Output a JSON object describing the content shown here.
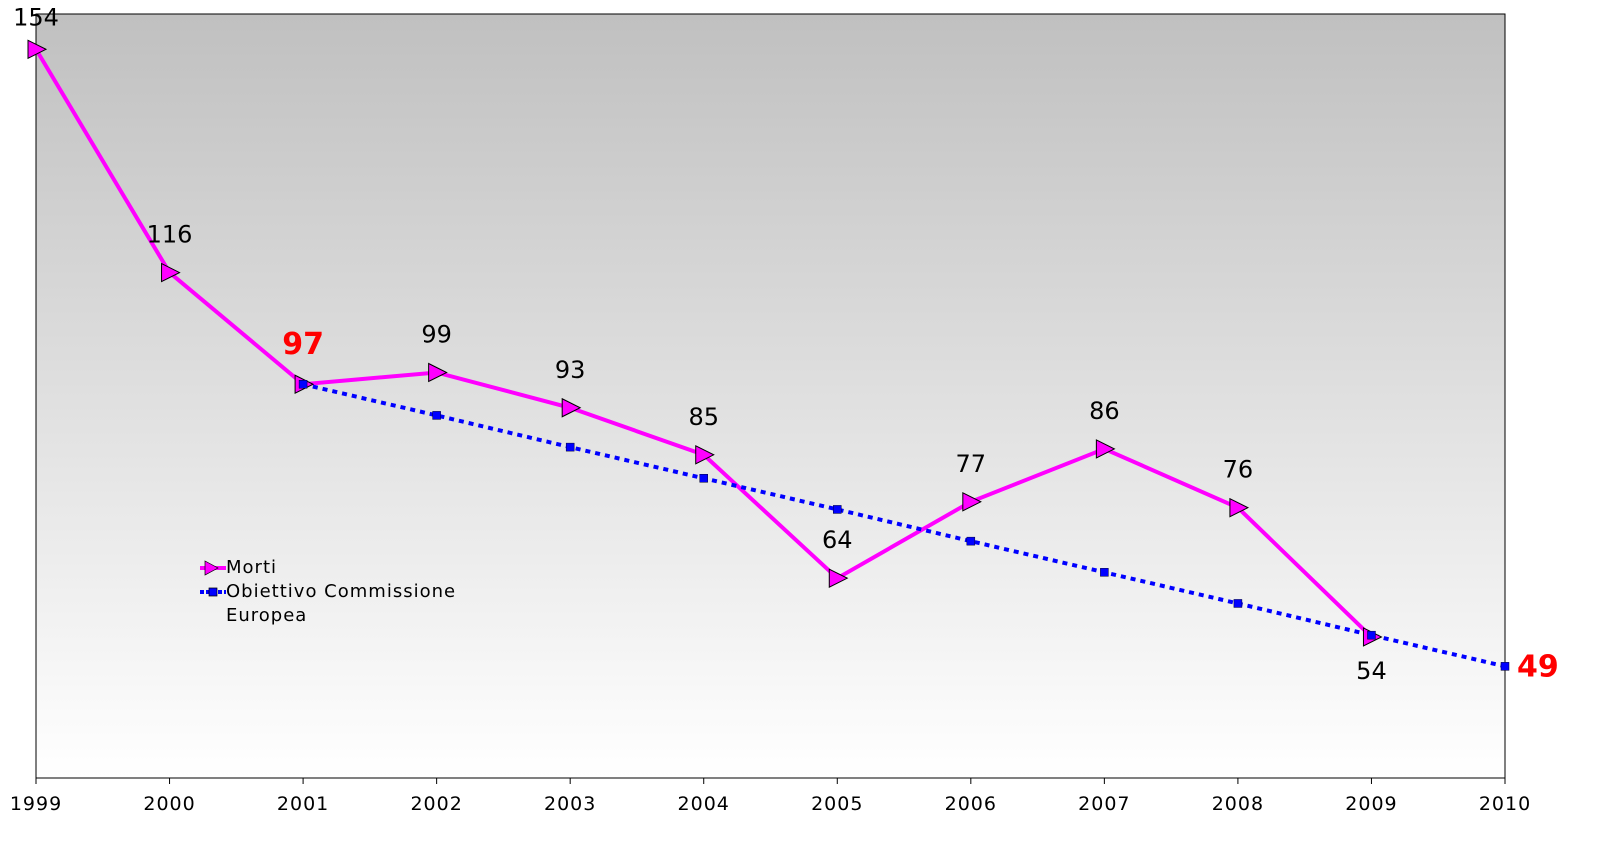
{
  "chart_data": {
    "type": "line",
    "categories": [
      "1999",
      "2000",
      "2001",
      "2002",
      "2003",
      "2004",
      "2005",
      "2006",
      "2007",
      "2008",
      "2009",
      "2010"
    ],
    "series": [
      {
        "name": "Morti",
        "color": "#ff00ff",
        "marker": "triangle",
        "dash": false,
        "values": [
          154,
          116,
          97,
          99,
          93,
          85,
          64,
          77,
          86,
          76,
          54,
          null
        ],
        "labeled_points": [
          0,
          1,
          2,
          3,
          4,
          5,
          6,
          7,
          8,
          9,
          10
        ],
        "label_highlight": [
          2
        ]
      },
      {
        "name": "Obiettivo Commissione Europea",
        "color": "#0000ff",
        "marker": "square",
        "dash": true,
        "values": [
          null,
          null,
          97,
          91.7,
          86.3,
          81,
          75.7,
          70.3,
          65,
          59.7,
          54.3,
          49
        ],
        "labeled_points": [
          11
        ],
        "label_highlight": [
          11
        ]
      }
    ],
    "highlight_color": "#ff0000",
    "ylim": [
      30,
      160
    ],
    "grid": false
  }
}
